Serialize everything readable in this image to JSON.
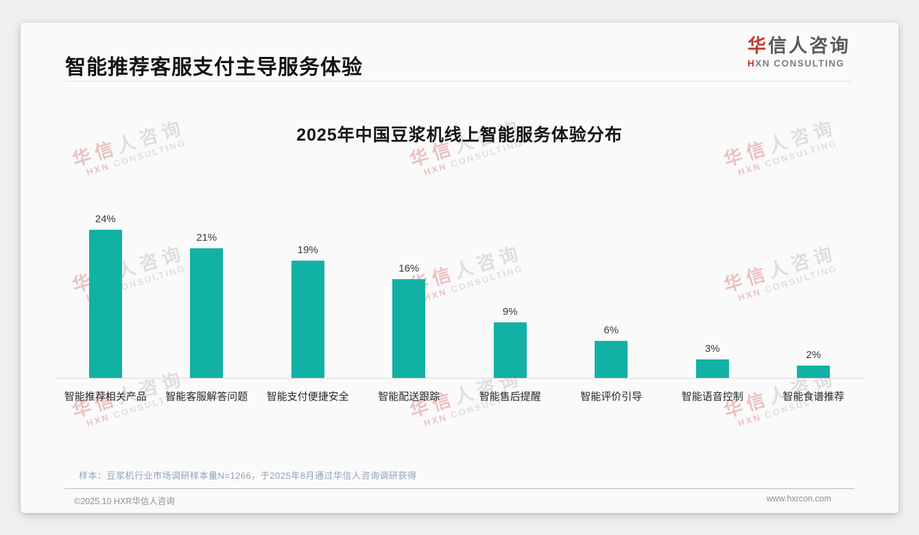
{
  "page": {
    "slide_title": "智能推荐客服支付主导服务体验",
    "sample_note": "样本：豆浆机行业市场调研样本量N=1266，于2025年8月通过华信人咨询调研获得",
    "footer_left": "©2025.10 HXR华信人咨询",
    "footer_right": "www.hxrcon.com"
  },
  "logo": {
    "cn_accent": "华",
    "cn_rest": "信人咨询",
    "en_accent": "H",
    "en_rest": "XN CONSULTING"
  },
  "watermark": {
    "line1_accent": "华信",
    "line1_rest": "人咨询",
    "line2_accent": "HXN",
    "line2_rest": " CONSULTING"
  },
  "colors": {
    "bar": "#12b1a5",
    "accent_red": "#c0392b"
  },
  "chart_data": {
    "type": "bar",
    "title": "2025年中国豆浆机线上智能服务体验分布",
    "categories": [
      "智能推荐相关产品",
      "智能客服解答问题",
      "智能支付便捷安全",
      "智能配送跟踪",
      "智能售后提醒",
      "智能评价引导",
      "智能语音控制",
      "智能食谱推荐"
    ],
    "values": [
      24,
      21,
      19,
      16,
      9,
      6,
      3,
      2
    ],
    "unit": "%",
    "xlabel": "",
    "ylabel": "",
    "ylim": [
      0,
      26
    ],
    "grid": false,
    "legend": false,
    "bar_color": "#12b1a5",
    "value_labels_shown": true
  }
}
